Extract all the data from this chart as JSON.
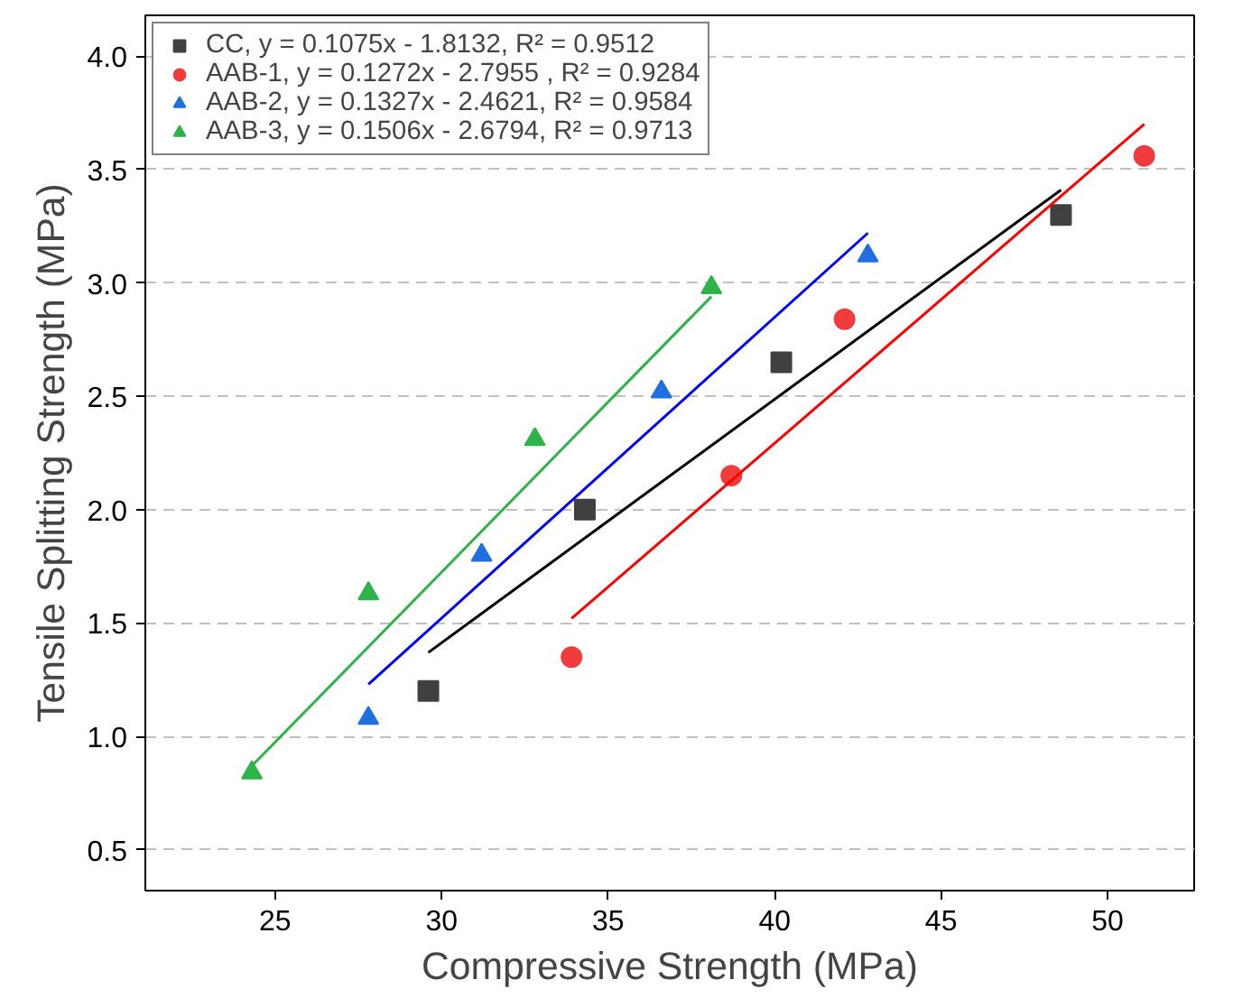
{
  "chart_data": {
    "type": "scatter",
    "xlabel": "Compressive Strength (MPa)",
    "ylabel": "Tensile Splitting Strength (MPa)",
    "xlim": [
      21.1,
      52.6
    ],
    "ylim": [
      0.32,
      4.18
    ],
    "xticks": [
      25,
      30,
      35,
      40,
      45,
      50
    ],
    "yticks": [
      0.5,
      {
        "value": 1,
        "label": "1.0"
      },
      1.5,
      {
        "value": 2,
        "label": "2.0"
      },
      2.5,
      {
        "value": 3,
        "label": "3.0"
      },
      3.5,
      {
        "value": 4,
        "label": "4.0"
      }
    ],
    "grid": "y",
    "legend": "top left",
    "series": [
      {
        "name": "CC, y = 0.1075x - 1.8132, R² = 0.9512",
        "color": "#404040",
        "marker": "square",
        "x": [
          29.6,
          34.3,
          40.2,
          48.6
        ],
        "values": [
          1.2,
          2.0,
          2.65,
          3.3
        ]
      },
      {
        "name": "AAB-1, y = 0.1272x - 2.7955 , R² = 0.9284",
        "color": "#f03c3c",
        "marker": "circle",
        "x": [
          33.9,
          38.7,
          42.1,
          51.1
        ],
        "values": [
          1.35,
          2.15,
          2.84,
          3.56
        ]
      },
      {
        "name": "AAB-2, y = 0.1327x - 2.4621, R² = 0.9584",
        "color": "#1f6fe0",
        "marker": "triangle",
        "x": [
          27.8,
          31.2,
          36.6,
          42.8
        ],
        "values": [
          1.08,
          1.8,
          2.52,
          3.12
        ]
      },
      {
        "name": "AAB-3, y = 0.1506x - 2.6794, R² = 0.9713",
        "color": "#2eb34a",
        "marker": "triangle",
        "x": [
          24.3,
          27.8,
          32.8,
          38.1
        ],
        "values": [
          0.84,
          1.63,
          2.31,
          2.98
        ]
      },
      {
        "type": "line",
        "color": "#000000",
        "x": [
          29.6,
          48.6
        ],
        "values": [
          1.37,
          3.41
        ]
      },
      {
        "type": "line",
        "color": "#ff0000",
        "x": [
          33.9,
          51.1
        ],
        "values": [
          1.52,
          3.7
        ]
      },
      {
        "type": "line",
        "color": "#0000ff",
        "x": [
          27.8,
          42.8
        ],
        "values": [
          1.23,
          3.22
        ]
      },
      {
        "type": "line",
        "color": "#2eb34a",
        "x": [
          24.3,
          38.1
        ],
        "values": [
          0.87,
          2.94
        ]
      }
    ]
  }
}
